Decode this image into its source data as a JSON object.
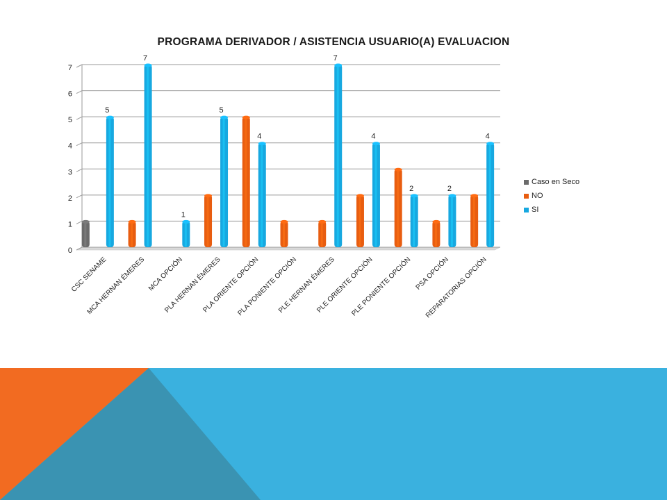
{
  "slide": {
    "decoration_colors": {
      "orange": "#f26b21",
      "blue": "#3ab1df",
      "slate": "#3a93b2"
    }
  },
  "chart_data": {
    "type": "bar",
    "title": "PROGRAMA DERIVADOR / ASISTENCIA USUARIO(A) EVALUACION",
    "categories": [
      "CSC SENAME",
      "MCA  HERNAN ÉMERES",
      "MCA OPCIÓN",
      "PLA HERNAN ÉMERES",
      "PLA ORIENTE OPCIÓN",
      "PLA PONIENTE OPCIÓN",
      "PLE HERNAN ÉMERES",
      "PLE ORIENTE OPCIÓN",
      "PLE PONIENTE OPCIÓN",
      "PSA OPCIÓN",
      "REPARATORIAS OPCIÓN"
    ],
    "series": [
      {
        "name": "Caso en Seco",
        "color": "#6b6b6b",
        "values": [
          1,
          null,
          null,
          null,
          null,
          null,
          null,
          null,
          null,
          null,
          null
        ]
      },
      {
        "name": "NO",
        "color": "#e85d10",
        "values": [
          null,
          1,
          null,
          2,
          5,
          1,
          1,
          2,
          3,
          1,
          2
        ]
      },
      {
        "name": "SI",
        "color": "#17a8e0",
        "values": [
          5,
          7,
          1,
          5,
          4,
          null,
          7,
          4,
          2,
          2,
          4
        ]
      }
    ],
    "data_labels": [
      {
        "category": 0,
        "series": "SI",
        "label": "5"
      },
      {
        "category": 1,
        "series": "SI",
        "label": "7"
      },
      {
        "category": 2,
        "series": "SI",
        "label": "1"
      },
      {
        "category": 3,
        "series": "SI",
        "label": "5"
      },
      {
        "category": 4,
        "series": "SI",
        "label": "4"
      },
      {
        "category": 6,
        "series": "SI",
        "label": "7"
      },
      {
        "category": 7,
        "series": "SI",
        "label": "4"
      },
      {
        "category": 8,
        "series": "SI",
        "label": "2"
      },
      {
        "category": 9,
        "series": "SI",
        "label": "2"
      },
      {
        "category": 10,
        "series": "SI",
        "label": "4"
      }
    ],
    "yticks": [
      "0",
      "1",
      "2",
      "3",
      "4",
      "5",
      "6",
      "7"
    ],
    "ylim": [
      0,
      7
    ],
    "grid": true,
    "legend_position": "right"
  }
}
